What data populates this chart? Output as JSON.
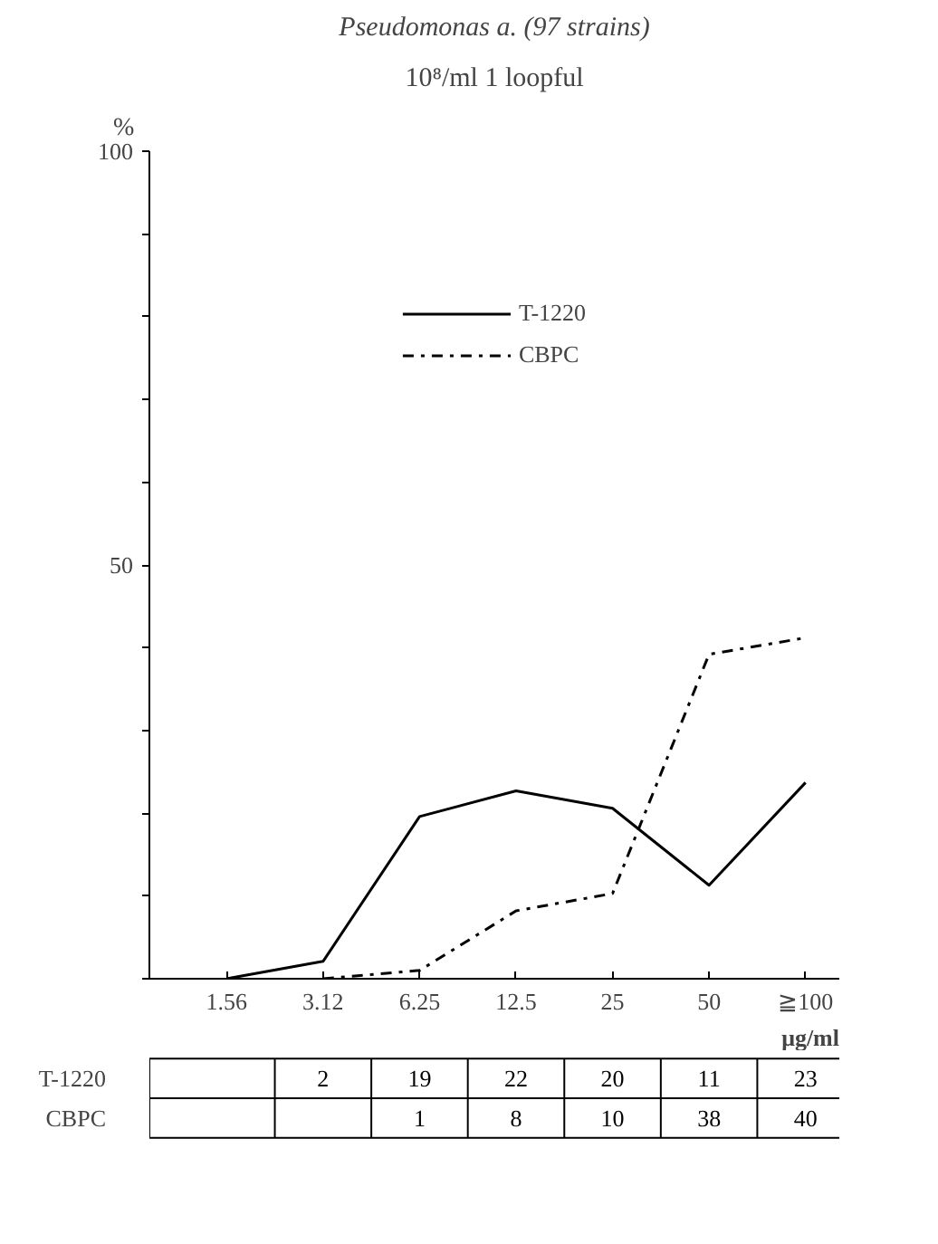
{
  "chart_data": [
    {
      "type": "line",
      "title": "Pseudomonas a. (97 strains)",
      "subtitle": "10⁸/ml 1 loopful",
      "xlabel": "μg/ml",
      "ylabel": "%",
      "categories": [
        "1.56",
        "3.12",
        "6.25",
        "12.5",
        "25",
        "50",
        "≧100"
      ],
      "series": [
        {
          "name": "T-1220",
          "color": "#000000",
          "line_style": "solid",
          "values": [
            0,
            2.1,
            19.6,
            22.7,
            20.6,
            11.3,
            23.7
          ]
        },
        {
          "name": "CBPC",
          "color": "#000000",
          "line_style": "dashdot",
          "values": [
            null,
            0,
            1.0,
            8.2,
            10.3,
            39.2,
            41.2
          ]
        }
      ],
      "ylim": [
        0,
        100
      ],
      "yticks": [
        {
          "value": 0,
          "label": null
        },
        {
          "value": 10,
          "label": null
        },
        {
          "value": 20,
          "label": null
        },
        {
          "value": 30,
          "label": null
        },
        {
          "value": 40,
          "label": null
        },
        50,
        {
          "value": 60,
          "label": null
        },
        {
          "value": 70,
          "label": null
        },
        {
          "value": 80,
          "label": null
        },
        {
          "value": 90,
          "label": null
        },
        100
      ],
      "grid": false,
      "legend": "top",
      "marker": "none"
    },
    {
      "type": "heatmap",
      "categories": [
        null,
        null,
        null,
        null,
        null,
        null,
        null
      ],
      "y_categories": [
        "T-1220",
        "CBPC"
      ],
      "cells": [
        [
          null,
          2,
          19,
          22,
          20,
          11,
          23
        ],
        [
          null,
          null,
          1,
          8,
          10,
          38,
          40
        ]
      ],
      "data_labels": true
    }
  ]
}
